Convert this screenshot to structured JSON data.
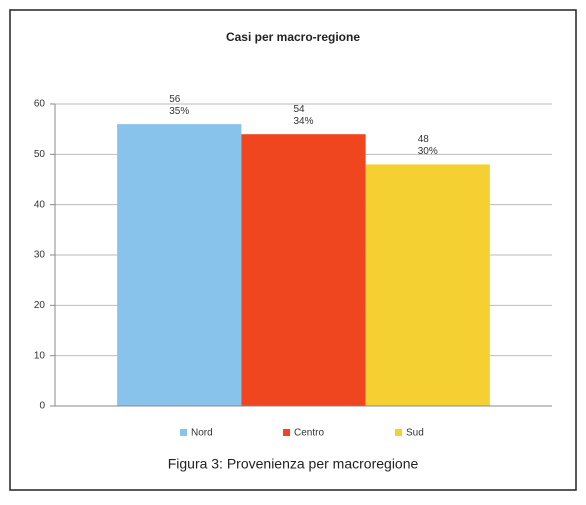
{
  "chart_data": {
    "type": "bar",
    "title": "Casi per macro-regione",
    "categories": [
      null
    ],
    "series": [
      {
        "name": "Nord",
        "color": "#87c3ea",
        "values": [
          56
        ],
        "percentages": [
          35
        ],
        "percentage_labels": [
          "35%"
        ]
      },
      {
        "name": "Centro",
        "color": "#f0461f",
        "values": [
          54
        ],
        "percentages": [
          34
        ],
        "percentage_labels": [
          "34%"
        ]
      },
      {
        "name": "Sud",
        "color": "#f5d033",
        "values": [
          48
        ],
        "percentages": [
          30
        ],
        "percentage_labels": [
          "30%"
        ]
      }
    ],
    "ylim": [
      0,
      60
    ],
    "yticks": [
      0,
      10,
      20,
      30,
      40,
      50,
      60
    ],
    "grid": true,
    "legend": "bottom"
  },
  "caption": "Figura 3: Provenienza per macroregione"
}
